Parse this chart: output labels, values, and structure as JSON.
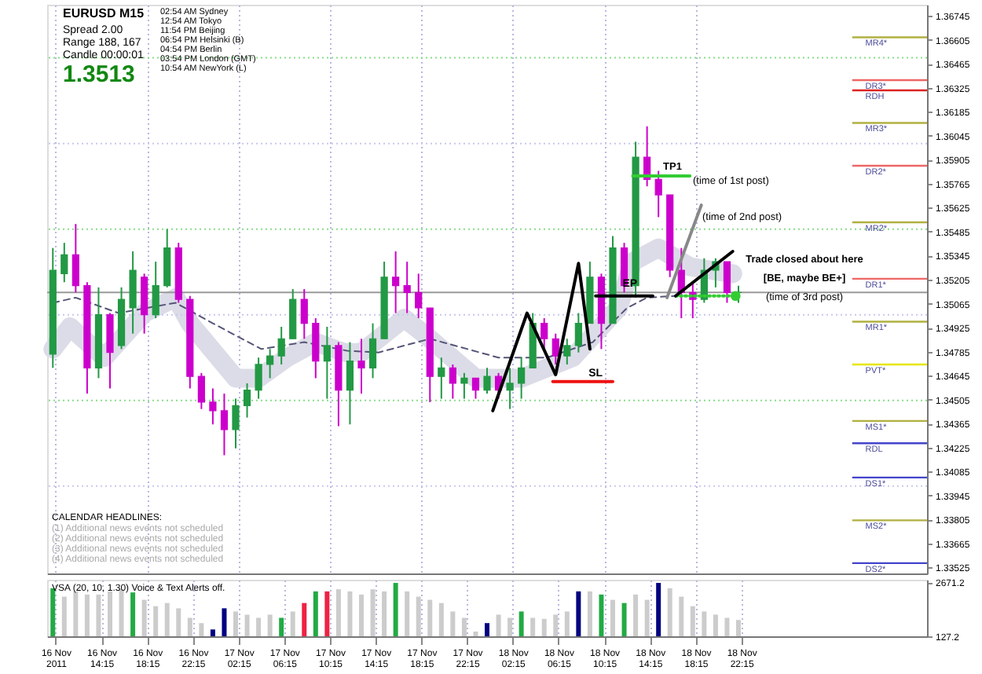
{
  "chart_data": [
    {
      "type": "candlestick",
      "x": [
        "2011-11-16T10:00",
        "2011-11-16T11:00",
        "2011-11-16T12:00",
        "2011-11-16T13:00",
        "2011-11-16T14:00",
        "2011-11-16T15:00",
        "2011-11-16T16:00",
        "2011-11-16T17:00",
        "2011-11-16T18:00",
        "2011-11-16T19:00",
        "2011-11-16T20:00",
        "2011-11-16T21:00",
        "2011-11-16T22:00",
        "2011-11-16T23:00",
        "2011-11-17T00:00",
        "2011-11-17T01:00",
        "2011-11-17T02:00",
        "2011-11-17T03:00",
        "2011-11-17T04:00",
        "2011-11-17T05:00",
        "2011-11-17T06:00",
        "2011-11-17T07:00",
        "2011-11-17T08:00",
        "2011-11-17T09:00",
        "2011-11-17T10:00",
        "2011-11-17T11:00",
        "2011-11-17T12:00",
        "2011-11-17T13:00",
        "2011-11-17T14:00",
        "2011-11-17T15:00",
        "2011-11-17T16:00",
        "2011-11-17T17:00",
        "2011-11-17T18:00",
        "2011-11-17T19:00",
        "2011-11-17T20:00",
        "2011-11-17T21:00",
        "2011-11-17T22:00",
        "2011-11-17T23:00",
        "2011-11-18T00:00",
        "2011-11-18T01:00",
        "2011-11-18T02:00",
        "2011-11-18T03:00",
        "2011-11-18T04:00",
        "2011-11-18T05:00",
        "2011-11-18T06:00",
        "2011-11-18T07:00",
        "2011-11-18T08:00",
        "2011-11-18T09:00",
        "2011-11-18T10:00",
        "2011-11-18T11:00",
        "2011-11-18T12:00",
        "2011-11-18T13:00",
        "2011-11-18T14:00",
        "2011-11-18T15:00",
        "2011-11-18T16:00",
        "2011-11-18T17:00",
        "2011-11-18T18:00",
        "2011-11-18T19:00",
        "2011-11-18T20:00",
        "2011-11-18T21:00",
        "2011-11-18T22:00"
      ],
      "ohlc": [
        [
          1.3477,
          1.3539,
          1.3469,
          1.3526
        ],
        [
          1.3524,
          1.3542,
          1.3519,
          1.3535
        ],
        [
          1.3535,
          1.3553,
          1.3513,
          1.3517
        ],
        [
          1.3517,
          1.3519,
          1.3454,
          1.3469
        ],
        [
          1.3469,
          1.3516,
          1.3463,
          1.35
        ],
        [
          1.35,
          1.3501,
          1.3457,
          1.3478
        ],
        [
          1.3482,
          1.3516,
          1.348,
          1.3509
        ],
        [
          1.3504,
          1.3537,
          1.3489,
          1.3526
        ],
        [
          1.3522,
          1.3524,
          1.3489,
          1.35
        ],
        [
          1.35,
          1.3531,
          1.3498,
          1.3517
        ],
        [
          1.3517,
          1.355,
          1.3516,
          1.3539
        ],
        [
          1.3539,
          1.3542,
          1.3507,
          1.3509
        ],
        [
          1.3509,
          1.3511,
          1.3457,
          1.3464
        ],
        [
          1.3464,
          1.3466,
          1.3445,
          1.3449
        ],
        [
          1.3449,
          1.3457,
          1.3436,
          1.3444
        ],
        [
          1.3444,
          1.3454,
          1.3418,
          1.3433
        ],
        [
          1.3433,
          1.3451,
          1.3422,
          1.3447
        ],
        [
          1.3447,
          1.346,
          1.344,
          1.3456
        ],
        [
          1.3456,
          1.3475,
          1.3451,
          1.3471
        ],
        [
          1.3471,
          1.348,
          1.3463,
          1.3476
        ],
        [
          1.3476,
          1.3493,
          1.3471,
          1.3486
        ],
        [
          1.3486,
          1.3515,
          1.3486,
          1.3509
        ],
        [
          1.3509,
          1.3515,
          1.3486,
          1.3495
        ],
        [
          1.3495,
          1.3498,
          1.3463,
          1.3473
        ],
        [
          1.3473,
          1.3493,
          1.3451,
          1.3482
        ],
        [
          1.3482,
          1.3484,
          1.3435,
          1.3456
        ],
        [
          1.3456,
          1.3484,
          1.3436,
          1.3473
        ],
        [
          1.3473,
          1.3486,
          1.3454,
          1.3469
        ],
        [
          1.3469,
          1.3495,
          1.3463,
          1.3486
        ],
        [
          1.3486,
          1.3531,
          1.3486,
          1.3522
        ],
        [
          1.3522,
          1.3537,
          1.3501,
          1.3517
        ],
        [
          1.3517,
          1.3531,
          1.3501,
          1.3513
        ],
        [
          1.3513,
          1.3524,
          1.3498,
          1.3504
        ],
        [
          1.3504,
          1.3504,
          1.3449,
          1.3464
        ],
        [
          1.3464,
          1.3475,
          1.3451,
          1.3469
        ],
        [
          1.3469,
          1.3471,
          1.3451,
          1.346
        ],
        [
          1.346,
          1.3466,
          1.3451,
          1.3463
        ],
        [
          1.3463,
          1.3463,
          1.3451,
          1.3456
        ],
        [
          1.3456,
          1.3469,
          1.3454,
          1.3464
        ],
        [
          1.3464,
          1.3466,
          1.3451,
          1.3456
        ],
        [
          1.3456,
          1.3469,
          1.3445,
          1.346
        ],
        [
          1.346,
          1.3475,
          1.3451,
          1.3469
        ],
        [
          1.3469,
          1.3501,
          1.3469,
          1.3495
        ],
        [
          1.3495,
          1.3498,
          1.348,
          1.3486
        ],
        [
          1.3486,
          1.3489,
          1.3471,
          1.3476
        ],
        [
          1.3476,
          1.3486,
          1.3471,
          1.3482
        ],
        [
          1.3482,
          1.3501,
          1.3478,
          1.3495
        ],
        [
          1.3495,
          1.3531,
          1.3495,
          1.3522
        ],
        [
          1.3522,
          1.3524,
          1.348,
          1.3495
        ],
        [
          1.3495,
          1.3546,
          1.3495,
          1.3539
        ],
        [
          1.3539,
          1.3542,
          1.3513,
          1.3517
        ],
        [
          1.3517,
          1.3601,
          1.351,
          1.3592
        ],
        [
          1.3592,
          1.361,
          1.3575,
          1.3579
        ],
        [
          1.3579,
          1.3584,
          1.3557,
          1.357
        ],
        [
          1.357,
          1.357,
          1.3522,
          1.3526
        ],
        [
          1.3526,
          1.3539,
          1.3498,
          1.3513
        ],
        [
          1.3513,
          1.3519,
          1.3498,
          1.3509
        ],
        [
          1.3509,
          1.3533,
          1.3507,
          1.3526
        ],
        [
          1.3526,
          1.3533,
          1.3516,
          1.3531
        ],
        [
          1.3531,
          1.3531,
          1.3507,
          1.3513
        ],
        [
          1.3513,
          1.3517,
          1.3507,
          1.3513
        ]
      ],
      "colors": [
        "#229944",
        "#229944",
        "#cc00cc",
        "#cc00cc",
        "#229944",
        "#cc00cc",
        "#229944",
        "#229944",
        "#cc00cc",
        "#229944",
        "#229944",
        "#cc00cc",
        "#cc00cc",
        "#cc00cc",
        "#cc00cc",
        "#cc00cc",
        "#229944",
        "#229944",
        "#229944",
        "#229944",
        "#229944",
        "#229944",
        "#cc00cc",
        "#cc00cc",
        "#229944",
        "#cc00cc",
        "#229944",
        "#cc00cc",
        "#229944",
        "#229944",
        "#cc00cc",
        "#cc00cc",
        "#cc00cc",
        "#cc00cc",
        "#229944",
        "#cc00cc",
        "#229944",
        "#cc00cc",
        "#229944",
        "#cc00cc",
        "#229944",
        "#229944",
        "#229944",
        "#cc00cc",
        "#cc00cc",
        "#229944",
        "#229944",
        "#229944",
        "#cc00cc",
        "#229944",
        "#cc00cc",
        "#229944",
        "#cc00cc",
        "#cc00cc",
        "#cc00cc",
        "#cc00cc",
        "#cc00cc",
        "#229944",
        "#229944",
        "#cc00cc",
        "#229944"
      ],
      "series": [
        {
          "type": "line",
          "color": "#dcdce8",
          "x": [
            "2011-11-16T10:00",
            "2011-11-16T11:30",
            "2011-11-16T14:30",
            "2011-11-16T18:00",
            "2011-11-16T20:45",
            "2011-11-16T22:00",
            "2011-11-17T02:00",
            "2011-11-17T04:00",
            "2011-11-17T06:30",
            "2011-11-17T09:00",
            "2011-11-17T11:30",
            "2011-11-17T13:00",
            "2011-11-17T16:45",
            "2011-11-17T19:00",
            "2011-11-17T23:00",
            "2011-11-18T03:00",
            "2011-11-18T07:30",
            "2011-11-18T11:30",
            "2011-11-18T12:45",
            "2011-11-18T15:00",
            "2011-11-18T17:45",
            "2011-11-18T21:30"
          ],
          "values": [
            1.348,
            1.3493,
            1.3475,
            1.3501,
            1.351,
            1.3495,
            1.3463,
            1.3463,
            1.3475,
            1.3484,
            1.3478,
            1.3478,
            1.3498,
            1.3486,
            1.3463,
            1.3463,
            1.3475,
            1.3504,
            1.3531,
            1.3539,
            1.3528,
            1.3524
          ]
        },
        {
          "type": "line",
          "color": "#555577",
          "line_style": "dashed",
          "x": [
            "2011-11-16T10:00",
            "2011-11-16T12:00",
            "2011-11-16T15:45",
            "2011-11-16T20:45",
            "2011-11-17T00:00",
            "2011-11-17T04:15",
            "2011-11-17T08:00",
            "2011-11-17T11:45",
            "2011-11-17T14:30",
            "2011-11-17T19:00",
            "2011-11-18T01:00",
            "2011-11-18T05:15",
            "2011-11-18T09:15",
            "2011-11-18T12:15",
            "2011-11-18T14:00",
            "2011-11-18T16:30"
          ],
          "values": [
            1.3507,
            1.351,
            1.3501,
            1.3507,
            1.3495,
            1.348,
            1.3484,
            1.3479,
            1.3478,
            1.3486,
            1.3475,
            1.3475,
            1.3484,
            1.3504,
            1.351,
            1.3511
          ]
        },
        {
          "type": "line",
          "color": "#000000",
          "x": [
            "2011-11-18T00:30",
            "2011-11-18T03:30",
            "2011-11-18T06:00",
            "2011-11-18T08:00",
            "2011-11-18T09:00"
          ],
          "values": [
            1.3444,
            1.3501,
            1.3465,
            1.353,
            1.348
          ]
        },
        {
          "type": "line",
          "color": "#33cc33",
          "x": [
            "2011-11-18T12:45",
            "2011-11-18T17:45"
          ],
          "values": [
            1.3581,
            1.3581
          ]
        },
        {
          "type": "line",
          "color": "#000000",
          "x": [
            "2011-11-18T09:30",
            "2011-11-18T14:30"
          ],
          "values": [
            1.3511,
            1.3511
          ]
        },
        {
          "type": "line",
          "color": "#ee1111",
          "x": [
            "2011-11-18T05:45",
            "2011-11-18T11:00"
          ],
          "values": [
            1.3461,
            1.3461
          ]
        },
        {
          "type": "line",
          "color": "#33cc33",
          "line_style": "dotted",
          "x": [
            "2011-11-18T16:30",
            "2011-11-18T21:45"
          ],
          "values": [
            1.3511,
            1.3511
          ]
        },
        {
          "type": "scatter",
          "color": "#33cc33",
          "marker": "circle",
          "x": [
            "2011-11-18T21:45"
          ],
          "values": [
            1.3511
          ]
        },
        {
          "type": "line",
          "color": "#000000",
          "x": [
            "2011-11-18T16:30",
            "2011-11-18T21:30"
          ],
          "values": [
            1.3511,
            1.3537
          ]
        },
        {
          "type": "line",
          "color": "#888888",
          "x": [
            "2011-11-18T15:45",
            "2011-11-18T18:45"
          ],
          "values": [
            1.351,
            1.3564
          ]
        }
      ],
      "xlim": [
        "2011-11-16T09:30",
        "2011-11-19T14:30"
      ],
      "ylim": [
        1.3349,
        1.3681
      ],
      "yticks": [
        1.36745,
        1.36605,
        1.36465,
        1.36325,
        1.36185,
        1.36045,
        1.35905,
        1.35765,
        1.35625,
        1.35485,
        1.35345,
        1.35205,
        1.35065,
        1.34925,
        1.34785,
        1.34645,
        1.34505,
        1.34365,
        1.34225,
        1.34085,
        1.33945,
        1.33805,
        1.33665,
        1.33525
      ],
      "tick_labels": "y",
      "xticks": [
        {
          "value": "2011-11-16T10:15",
          "label": null
        },
        {
          "value": "2011-11-16T14:15",
          "label": null
        },
        {
          "value": "2011-11-16T18:15",
          "label": null
        },
        {
          "value": "2011-11-16T22:15",
          "label": null
        },
        {
          "value": "2011-11-17T02:15",
          "label": null
        },
        {
          "value": "2011-11-17T06:15",
          "label": null
        },
        {
          "value": "2011-11-17T10:15",
          "label": null
        },
        {
          "value": "2011-11-17T14:15",
          "label": null
        },
        {
          "value": "2011-11-17T18:15",
          "label": null
        },
        {
          "value": "2011-11-17T22:15",
          "label": null
        },
        {
          "value": "2011-11-18T02:15",
          "label": null
        },
        {
          "value": "2011-11-18T06:15",
          "label": null
        },
        {
          "value": "2011-11-18T10:15",
          "label": null
        },
        {
          "value": "2011-11-18T14:15",
          "label": null
        },
        {
          "value": "2011-11-18T18:15",
          "label": null
        },
        {
          "value": "2011-11-18T22:15",
          "label": null
        }
      ],
      "grid": "x",
      "ref_lines": [
        {
          "axis": "y",
          "value": 1.365,
          "color": "#88dd88",
          "line_style": "dotted"
        },
        {
          "axis": "y",
          "value": 1.36,
          "color": "#c8c8ee",
          "line_style": "dotted"
        },
        {
          "axis": "y",
          "value": 1.355,
          "color": "#88dd88",
          "line_style": "dotted"
        },
        {
          "axis": "y",
          "value": 1.35,
          "color": "#c8c8ee",
          "line_style": "dotted"
        },
        {
          "axis": "y",
          "value": 1.345,
          "color": "#88dd88",
          "line_style": "dotted"
        },
        {
          "axis": "y",
          "value": 1.34,
          "color": "#c8c8ee",
          "line_style": "dotted"
        },
        {
          "axis": "y",
          "value": 1.3513,
          "color": "#999999",
          "line_style": "solid"
        },
        {
          "axis": "y",
          "value": 1.3662,
          "label": "MR4*",
          "color": "#b0b040"
        },
        {
          "axis": "y",
          "value": 1.3637,
          "label": "DR3*",
          "color": "#ee6666"
        },
        {
          "axis": "y",
          "value": 1.3631,
          "label": "RDH",
          "color": "#dd2222"
        },
        {
          "axis": "y",
          "value": 1.3612,
          "label": "MR3*",
          "color": "#b0b040"
        },
        {
          "axis": "y",
          "value": 1.3587,
          "label": "DR2*",
          "color": "#ee6666"
        },
        {
          "axis": "y",
          "value": 1.3554,
          "label": "MR2*",
          "color": "#b0b040"
        },
        {
          "axis": "y",
          "value": 1.3521,
          "label": "DR1*",
          "color": "#ee6666"
        },
        {
          "axis": "y",
          "value": 1.3496,
          "label": "MR1*",
          "color": "#b0b040"
        },
        {
          "axis": "y",
          "value": 1.3471,
          "label": "PVT*",
          "color": "#e6e600"
        },
        {
          "axis": "y",
          "value": 1.3438,
          "label": "MS1*",
          "color": "#b0b040"
        },
        {
          "axis": "y",
          "value": 1.3425,
          "label": "RDL",
          "color": "#4444cc"
        },
        {
          "axis": "y",
          "value": 1.3405,
          "label": "DS1*",
          "color": "#4444cc"
        },
        {
          "axis": "y",
          "value": 1.338,
          "label": "MS2*",
          "color": "#b0b040"
        },
        {
          "axis": "y",
          "value": 1.3355,
          "label": "DS2*",
          "color": "#4444cc"
        }
      ],
      "annotations": [
        "EURUSD  M15",
        "Spread  2.00",
        "Range  188, 167",
        "Candle  00:00:01",
        "1.3513",
        "02:54 AM  Sydney",
        "12:54 AM  Tokyo",
        "11:54 PM  Beijing",
        "06:54 PM  Helsinki (B)",
        "04:54 PM  Berlin",
        "03:54 PM  London (GMT)",
        "10:54 AM  NewYork (L)",
        "CALENDAR HEADLINES:",
        "(1) Additional news events not scheduled",
        "(2) Additional news events not scheduled",
        "(3) Additional news events not scheduled",
        "(4) Additional news events not scheduled",
        "TP1",
        "(time of 1st post)",
        "(time of 2nd post)",
        "Trade closed about here",
        "[BE, maybe BE+]",
        "(time of 3rd post)",
        {
          "text": "EP",
          "x": "2011-11-18T12:30",
          "y": 1.3518
        },
        {
          "text": "SL",
          "x": "2011-11-18T09:30",
          "y": 1.3466
        }
      ]
    },
    {
      "type": "bar",
      "title": "VSA (20, 10, 1.30)  Voice & Text Alerts off.",
      "x": [
        "2011-11-16T10:00",
        "2011-11-16T11:00",
        "2011-11-16T12:00",
        "2011-11-16T13:00",
        "2011-11-16T14:00",
        "2011-11-16T15:00",
        "2011-11-16T16:00",
        "2011-11-16T17:00",
        "2011-11-16T18:00",
        "2011-11-16T19:00",
        "2011-11-16T20:00",
        "2011-11-16T21:00",
        "2011-11-16T22:00",
        "2011-11-16T23:00",
        "2011-11-17T00:00",
        "2011-11-17T01:00",
        "2011-11-17T02:00",
        "2011-11-17T03:00",
        "2011-11-17T04:00",
        "2011-11-17T05:00",
        "2011-11-17T06:00",
        "2011-11-17T07:00",
        "2011-11-17T08:00",
        "2011-11-17T09:00",
        "2011-11-17T10:00",
        "2011-11-17T11:00",
        "2011-11-17T12:00",
        "2011-11-17T13:00",
        "2011-11-17T14:00",
        "2011-11-17T15:00",
        "2011-11-17T16:00",
        "2011-11-17T17:00",
        "2011-11-17T18:00",
        "2011-11-17T19:00",
        "2011-11-17T20:00",
        "2011-11-17T21:00",
        "2011-11-17T22:00",
        "2011-11-17T23:00",
        "2011-11-18T00:00",
        "2011-11-18T01:00",
        "2011-11-18T02:00",
        "2011-11-18T03:00",
        "2011-11-18T04:00",
        "2011-11-18T05:00",
        "2011-11-18T06:00",
        "2011-11-18T07:00",
        "2011-11-18T08:00",
        "2011-11-18T09:00",
        "2011-11-18T10:00",
        "2011-11-18T11:00",
        "2011-11-18T12:00",
        "2011-11-18T13:00",
        "2011-11-18T14:00",
        "2011-11-18T15:00",
        "2011-11-18T16:00",
        "2011-11-18T17:00",
        "2011-11-18T18:00",
        "2011-11-18T19:00",
        "2011-11-18T20:00",
        "2011-11-18T21:00",
        "2011-11-18T22:00"
      ],
      "values": [
        2400,
        2000,
        2250,
        2100,
        2100,
        2250,
        2350,
        2200,
        1850,
        1550,
        1700,
        1450,
        1000,
        750,
        450,
        1450,
        1300,
        1150,
        1000,
        1150,
        1000,
        1300,
        1700,
        2250,
        2250,
        2350,
        2250,
        2100,
        2350,
        2250,
        2650,
        2250,
        2000,
        1850,
        1700,
        1300,
        1000,
        350,
        750,
        1150,
        1000,
        1300,
        1000,
        950,
        1150,
        1300,
        2250,
        2250,
        2100,
        1850,
        1700,
        2100,
        1850,
        2650,
        2400,
        2000,
        1550,
        1300,
        1150,
        1000,
        900
      ],
      "colors": [
        "#22aa44",
        "#cccccc",
        "#cccccc",
        "#cccccc",
        "#cccccc",
        "#cccccc",
        "#cccccc",
        "#22aa44",
        "#cccccc",
        "#cccccc",
        "#cccccc",
        "#cccccc",
        "#cccccc",
        "#cccccc",
        "#000080",
        "#000080",
        "#cccccc",
        "#cccccc",
        "#cccccc",
        "#cccccc",
        "#22aa44",
        "#cccccc",
        "#ee2244",
        "#22aa44",
        "#ee2244",
        "#cccccc",
        "#cccccc",
        "#cccccc",
        "#cccccc",
        "#cccccc",
        "#22aa44",
        "#cccccc",
        "#cccccc",
        "#cccccc",
        "#cccccc",
        "#cccccc",
        "#cccccc",
        "#cccccc",
        "#000080",
        "#cccccc",
        "#cccccc",
        "#22aa44",
        "#cccccc",
        "#cccccc",
        "#cccccc",
        "#cccccc",
        "#000080",
        "#cccccc",
        "#22aa44",
        "#cccccc",
        "#22aa44",
        "#cccccc",
        "#cccccc",
        "#000080",
        "#cccccc",
        "#cccccc",
        "#cccccc",
        "#cccccc",
        "#cccccc",
        "#cccccc",
        "#cccccc"
      ],
      "xlim": [
        "2011-11-16T09:30",
        "2011-11-19T14:30"
      ],
      "ylim": [
        127.2,
        2800
      ],
      "yticks": [
        127.2,
        2671.2
      ],
      "xticks": [
        {
          "value": "2011-11-16T10:15",
          "label": "16 Nov 2011"
        },
        {
          "value": "2011-11-16T14:15",
          "label": "16 Nov 14:15"
        },
        {
          "value": "2011-11-16T18:15",
          "label": "16 Nov 18:15"
        },
        {
          "value": "2011-11-16T22:15",
          "label": "16 Nov 22:15"
        },
        {
          "value": "2011-11-17T02:15",
          "label": "17 Nov 02:15"
        },
        {
          "value": "2011-11-17T06:15",
          "label": "17 Nov 06:15"
        },
        {
          "value": "2011-11-17T10:15",
          "label": "17 Nov 10:15"
        },
        {
          "value": "2011-11-17T14:15",
          "label": "17 Nov 14:15"
        },
        {
          "value": "2011-11-17T18:15",
          "label": "17 Nov 18:15"
        },
        {
          "value": "2011-11-17T22:15",
          "label": "17 Nov 22:15"
        },
        {
          "value": "2011-11-18T02:15",
          "label": "18 Nov 02:15"
        },
        {
          "value": "2011-11-18T06:15",
          "label": "18 Nov 06:15"
        },
        {
          "value": "2011-11-18T10:15",
          "label": "18 Nov 10:15"
        },
        {
          "value": "2011-11-18T14:15",
          "label": "18 Nov 14:15"
        },
        {
          "value": "2011-11-18T18:15",
          "label": "18 Nov 18:15"
        },
        {
          "value": "2011-11-18T22:15",
          "label": "18 Nov 22:15"
        }
      ],
      "grid": "x"
    }
  ]
}
